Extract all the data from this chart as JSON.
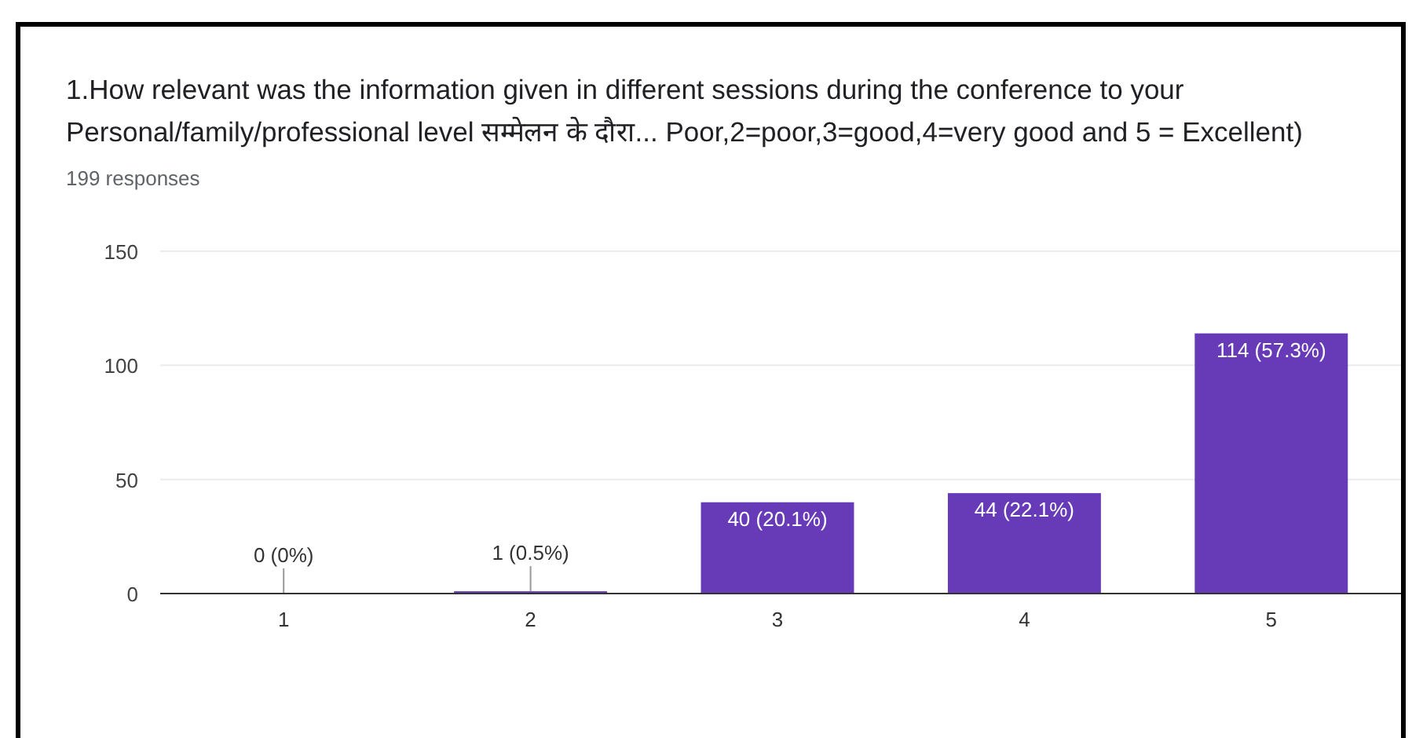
{
  "chart_data": {
    "type": "bar",
    "title": "1.How relevant was the information given in different sessions during the conference to your Personal/family/professional level  सम्मेलन के दौरा... Poor,2=poor,3=good,4=very good and 5 = Excellent)",
    "subtitle": "199 responses",
    "categories": [
      "1",
      "2",
      "3",
      "4",
      "5"
    ],
    "values": [
      0,
      1,
      40,
      44,
      114
    ],
    "value_labels": [
      "0 (0%)",
      "1 (0.5%)",
      "40 (20.1%)",
      "44 (22.1%)",
      "114 (57.3%)"
    ],
    "color": "#673ab7",
    "ylim": [
      0,
      150
    ],
    "yticks": [
      0,
      50,
      100,
      150
    ],
    "grid": "y"
  }
}
